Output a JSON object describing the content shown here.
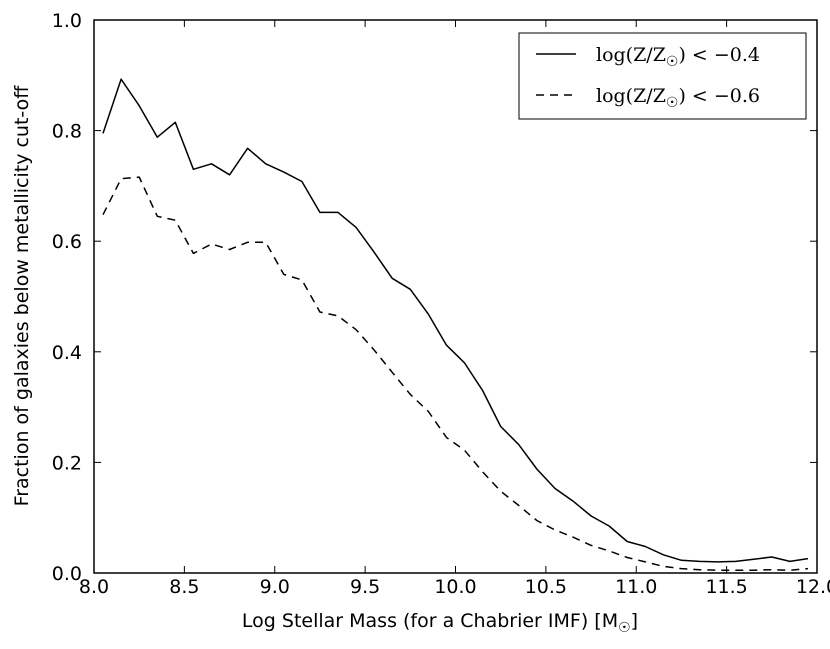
{
  "chart_data": {
    "type": "line",
    "title": "",
    "xlabel": "Log Stellar Mass (for a Chabrier IMF) [M",
    "xlabel_sub": "☉",
    "xlabel_end": "]",
    "ylabel": "Fraction of galaxies below metallicity cut-off",
    "xlim": [
      8.0,
      12.0
    ],
    "ylim": [
      0.0,
      1.0
    ],
    "xticks": [
      "8.0",
      "8.5",
      "9.0",
      "9.5",
      "10.0",
      "10.5",
      "11.0",
      "11.5",
      "12.0"
    ],
    "yticks": [
      "0.0",
      "0.2",
      "0.4",
      "0.6",
      "0.8",
      "1.0"
    ],
    "grid": false,
    "legend_position": "top-right",
    "x": [
      8.05,
      8.15,
      8.25,
      8.35,
      8.45,
      8.55,
      8.65,
      8.75,
      8.85,
      8.95,
      9.05,
      9.15,
      9.25,
      9.35,
      9.45,
      9.55,
      9.65,
      9.75,
      9.85,
      9.95,
      10.05,
      10.15,
      10.25,
      10.35,
      10.45,
      10.55,
      10.65,
      10.75,
      10.85,
      10.95,
      11.05,
      11.15,
      11.25,
      11.35,
      11.45,
      11.55,
      11.65,
      11.75,
      11.85,
      11.95
    ],
    "series": [
      {
        "name": "log(Z/Z☉) < −0.4",
        "legend_main": "log(Z/Z",
        "legend_sub": "☉",
        "legend_end": ") < −0.4",
        "style": "solid",
        "values": [
          0.795,
          0.893,
          0.845,
          0.788,
          0.815,
          0.73,
          0.74,
          0.72,
          0.768,
          0.74,
          0.725,
          0.708,
          0.652,
          0.652,
          0.625,
          0.58,
          0.533,
          0.513,
          0.468,
          0.412,
          0.38,
          0.33,
          0.265,
          0.232,
          0.188,
          0.153,
          0.13,
          0.103,
          0.085,
          0.057,
          0.048,
          0.033,
          0.023,
          0.021,
          0.02,
          0.021,
          0.025,
          0.029,
          0.021,
          0.026
        ]
      },
      {
        "name": "log(Z/Z☉) < −0.6",
        "legend_main": "log(Z/Z",
        "legend_sub": "☉",
        "legend_end": ") < −0.6",
        "style": "dashed",
        "values": [
          0.648,
          0.713,
          0.716,
          0.645,
          0.638,
          0.578,
          0.595,
          0.585,
          0.598,
          0.598,
          0.54,
          0.53,
          0.472,
          0.465,
          0.44,
          0.403,
          0.363,
          0.323,
          0.292,
          0.245,
          0.222,
          0.183,
          0.148,
          0.122,
          0.095,
          0.078,
          0.065,
          0.05,
          0.04,
          0.028,
          0.02,
          0.012,
          0.008,
          0.006,
          0.005,
          0.005,
          0.005,
          0.006,
          0.005,
          0.008
        ]
      }
    ]
  }
}
